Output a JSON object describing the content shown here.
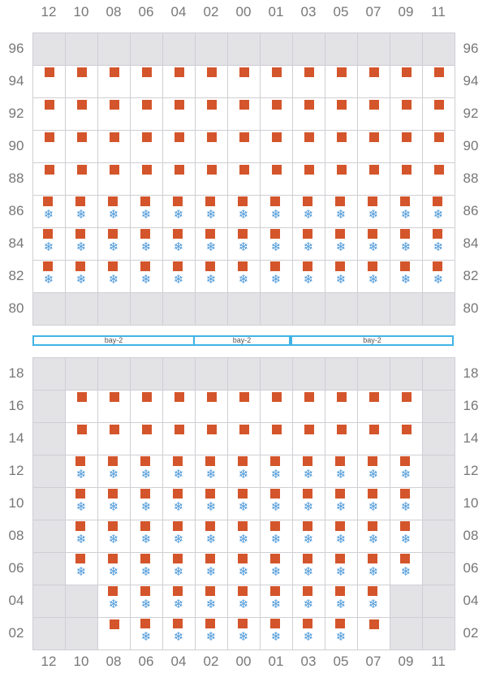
{
  "columns": [
    "12",
    "10",
    "08",
    "06",
    "04",
    "02",
    "00",
    "01",
    "03",
    "05",
    "07",
    "09",
    "11"
  ],
  "colors": {
    "container": "#d4552b",
    "reefer": "#4a97d8",
    "empty_cell": "#e3e3e6",
    "grid": "#cfcfd4",
    "bay_border": "#3fb3e6",
    "label": "#777777"
  },
  "icons": {
    "container": "square",
    "reefer": "snowflake-icon"
  },
  "bays": [
    {
      "label": "bay-2",
      "span_cols": [
        0,
        4
      ]
    },
    {
      "label": "bay-2",
      "span_cols": [
        5,
        7
      ]
    },
    {
      "label": "bay-2",
      "span_cols": [
        8,
        12
      ]
    }
  ],
  "upper_section": {
    "rows": [
      {
        "tier": "96",
        "cells": "-------------"
      },
      {
        "tier": "94",
        "cells": "CCCCCCCCCCCCC"
      },
      {
        "tier": "92",
        "cells": "CCCCCCCCCCCCC"
      },
      {
        "tier": "90",
        "cells": "CCCCCCCCCCCCC"
      },
      {
        "tier": "88",
        "cells": "CCCCCCCCCCCCC"
      },
      {
        "tier": "86",
        "cells": "RRRRRRRRRRRRR"
      },
      {
        "tier": "84",
        "cells": "RRRRRRRRRRRRR"
      },
      {
        "tier": "82",
        "cells": "RRRRRRRRRRRRR"
      },
      {
        "tier": "80",
        "cells": "-------------"
      }
    ]
  },
  "lower_section": {
    "rows": [
      {
        "tier": "18",
        "cells": "-------------"
      },
      {
        "tier": "16",
        "cells": "-CCCCCCCCCCC-"
      },
      {
        "tier": "14",
        "cells": "-CCCCCCCCCCC-"
      },
      {
        "tier": "12",
        "cells": "-RRRRRRRRRRR-"
      },
      {
        "tier": "10",
        "cells": "-RRRRRRRRRRR-"
      },
      {
        "tier": "08",
        "cells": "-RRRRRRRRRRR-"
      },
      {
        "tier": "06",
        "cells": "-RRRRRRRRRRR-"
      },
      {
        "tier": "04",
        "cells": "--RRRRRRRRR--"
      },
      {
        "tier": "02",
        "cells": "--CRRRRRRRC--"
      }
    ]
  }
}
